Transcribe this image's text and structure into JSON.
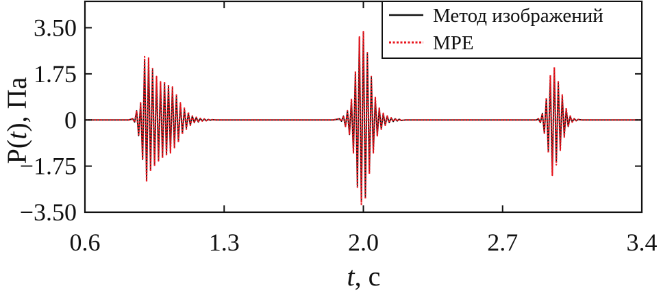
{
  "chart_data": {
    "type": "line",
    "xlabel": {
      "italic": "t",
      "rest": ", с"
    },
    "ylabel": {
      "prefix": "P(",
      "italic": "t",
      "rest": "), Па"
    },
    "xlim": [
      0.6,
      3.4
    ],
    "ylim": [
      -3.5,
      4.5
    ],
    "xticks": [
      {
        "value": 0.6,
        "label": "0.6"
      },
      {
        "value": 1.3,
        "label": "1.3"
      },
      {
        "value": 2.0,
        "label": "2.0"
      },
      {
        "value": 2.7,
        "label": "2.7"
      },
      {
        "value": 3.4,
        "label": "3.4"
      }
    ],
    "yticks": [
      {
        "value": 3.5,
        "label": "3.50"
      },
      {
        "value": 1.75,
        "label": "1.75"
      },
      {
        "value": 0,
        "label": "0"
      },
      {
        "value": -1.75,
        "label": "−1.75"
      },
      {
        "value": -3.5,
        "label": "−3.50"
      }
    ],
    "grid": false,
    "legend_position": "top-right",
    "series": [
      {
        "name": "Метод изображений",
        "color": "#111111",
        "style": "solid",
        "x": [
          0.6,
          0.8,
          0.82,
          0.84,
          0.85,
          0.86,
          0.87,
          0.88,
          0.89,
          0.9,
          0.91,
          0.92,
          0.93,
          0.94,
          0.95,
          0.96,
          0.97,
          0.98,
          0.99,
          1.0,
          1.01,
          1.02,
          1.03,
          1.04,
          1.05,
          1.06,
          1.07,
          1.08,
          1.09,
          1.1,
          1.11,
          1.12,
          1.13,
          1.14,
          1.15,
          1.16,
          1.17,
          1.18,
          1.19,
          1.2,
          1.21,
          1.22,
          1.23,
          1.24,
          1.26,
          1.3,
          1.85,
          1.88,
          1.89,
          1.9,
          1.91,
          1.92,
          1.93,
          1.94,
          1.95,
          1.96,
          1.97,
          1.98,
          1.99,
          2.0,
          2.01,
          2.02,
          2.03,
          2.04,
          2.05,
          2.06,
          2.07,
          2.08,
          2.09,
          2.1,
          2.11,
          2.12,
          2.13,
          2.14,
          2.15,
          2.16,
          2.17,
          2.18,
          2.19,
          2.21,
          2.25,
          2.85,
          2.87,
          2.88,
          2.89,
          2.9,
          2.91,
          2.92,
          2.93,
          2.94,
          2.95,
          2.96,
          2.97,
          2.98,
          2.99,
          3.0,
          3.01,
          3.02,
          3.03,
          3.04,
          3.05,
          3.06,
          3.07,
          3.08,
          3.1,
          3.4
        ],
        "y": [
          0,
          0,
          0,
          0.05,
          -0.08,
          0.35,
          -0.6,
          0.65,
          -1.5,
          2.3,
          -2.3,
          2.3,
          -1.9,
          1.9,
          -1.7,
          1.6,
          -1.5,
          1.4,
          -1.4,
          1.4,
          -1.3,
          1.3,
          -1.2,
          1.2,
          -1.0,
          0.9,
          -0.8,
          0.6,
          -0.5,
          0.4,
          -0.3,
          0.25,
          -0.2,
          0.15,
          -0.1,
          0.1,
          -0.08,
          0.06,
          -0.04,
          0.04,
          -0.03,
          0.02,
          -0.01,
          0.01,
          0,
          0,
          0,
          0.05,
          -0.05,
          0.15,
          -0.25,
          0.35,
          -0.55,
          0.75,
          -1.2,
          1.8,
          -2.5,
          3.1,
          -3.1,
          3.3,
          -2.9,
          2.5,
          -2.0,
          1.6,
          -1.2,
          0.8,
          -0.6,
          0.45,
          -0.35,
          0.25,
          -0.2,
          0.15,
          -0.1,
          0.08,
          -0.06,
          0.05,
          -0.04,
          0.03,
          -0.02,
          0,
          0,
          0,
          0,
          0.05,
          -0.1,
          0.25,
          -0.5,
          0.8,
          -1.2,
          1.6,
          -2.0,
          1.9,
          -1.6,
          1.4,
          -1.1,
          0.9,
          -0.6,
          0.4,
          -0.25,
          0.15,
          -0.08,
          0.05,
          -0.03,
          0.02,
          0,
          0
        ]
      },
      {
        "name": "MPE",
        "color": "#e8141c",
        "style": "dotted",
        "x": [
          0.6,
          0.8,
          0.82,
          0.84,
          0.85,
          0.86,
          0.87,
          0.88,
          0.89,
          0.9,
          0.91,
          0.92,
          0.93,
          0.94,
          0.95,
          0.96,
          0.97,
          0.98,
          0.99,
          1.0,
          1.01,
          1.02,
          1.03,
          1.04,
          1.05,
          1.06,
          1.07,
          1.08,
          1.09,
          1.1,
          1.11,
          1.12,
          1.13,
          1.14,
          1.15,
          1.16,
          1.17,
          1.18,
          1.19,
          1.2,
          1.21,
          1.22,
          1.23,
          1.24,
          1.26,
          1.3,
          1.85,
          1.88,
          1.89,
          1.9,
          1.91,
          1.92,
          1.93,
          1.94,
          1.95,
          1.96,
          1.97,
          1.98,
          1.99,
          2.0,
          2.01,
          2.02,
          2.03,
          2.04,
          2.05,
          2.06,
          2.07,
          2.08,
          2.09,
          2.1,
          2.11,
          2.12,
          2.13,
          2.14,
          2.15,
          2.16,
          2.17,
          2.18,
          2.19,
          2.21,
          2.25,
          2.85,
          2.87,
          2.88,
          2.89,
          2.9,
          2.91,
          2.92,
          2.93,
          2.94,
          2.95,
          2.96,
          2.97,
          2.98,
          2.99,
          3.0,
          3.01,
          3.02,
          3.03,
          3.04,
          3.05,
          3.06,
          3.07,
          3.08,
          3.1,
          3.4
        ],
        "y": [
          0,
          0,
          0,
          0.05,
          -0.08,
          0.35,
          -0.6,
          0.65,
          -1.5,
          2.4,
          -2.35,
          2.35,
          -1.95,
          1.95,
          -1.75,
          1.65,
          -1.55,
          1.45,
          -1.45,
          1.45,
          -1.35,
          1.35,
          -1.25,
          1.25,
          -1.05,
          0.95,
          -0.85,
          0.65,
          -0.55,
          0.45,
          -0.35,
          0.3,
          -0.2,
          0.15,
          -0.1,
          0.1,
          -0.08,
          0.06,
          -0.04,
          0.04,
          -0.03,
          0.02,
          -0.01,
          0.01,
          0,
          0,
          0,
          0.05,
          -0.05,
          0.15,
          -0.25,
          0.35,
          -0.55,
          0.8,
          -1.25,
          1.85,
          -2.55,
          3.15,
          -3.2,
          3.35,
          -3.0,
          2.55,
          -2.05,
          1.65,
          -1.25,
          0.85,
          -0.6,
          0.45,
          -0.35,
          0.25,
          -0.2,
          0.15,
          -0.1,
          0.08,
          -0.06,
          0.05,
          -0.04,
          0.03,
          -0.02,
          0,
          0,
          0,
          0,
          0.05,
          -0.1,
          0.25,
          -0.5,
          0.85,
          -1.25,
          1.7,
          -2.1,
          2.0,
          -1.7,
          1.45,
          -1.15,
          0.95,
          -0.65,
          0.45,
          -0.25,
          0.15,
          -0.08,
          0.05,
          -0.03,
          0.02,
          0,
          0
        ]
      }
    ]
  }
}
